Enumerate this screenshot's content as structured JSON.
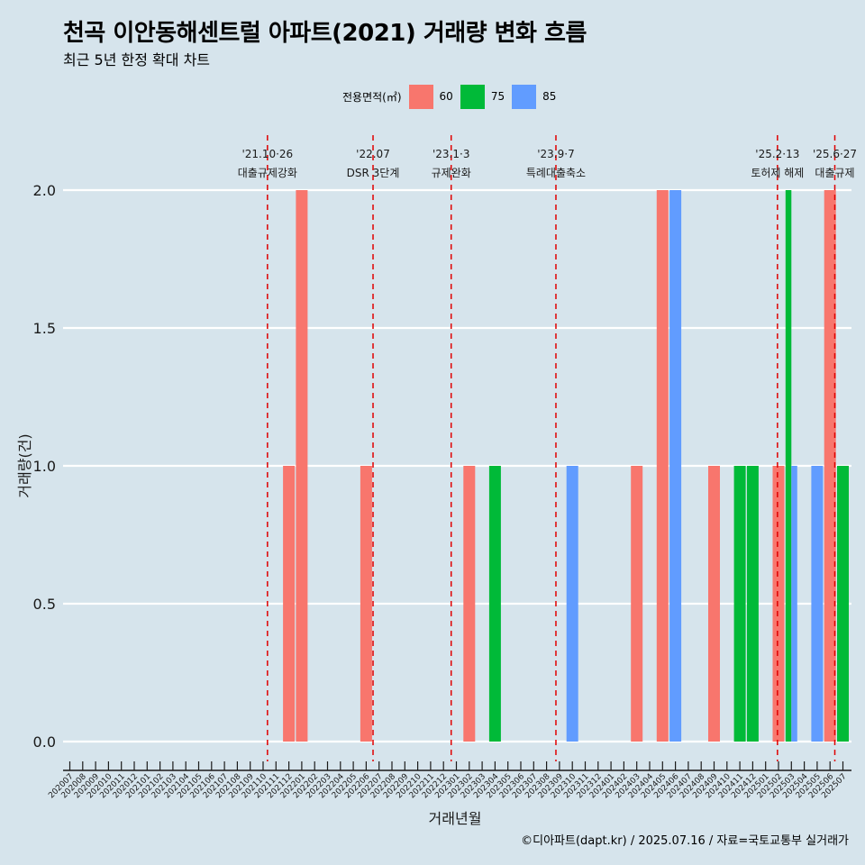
{
  "title": "천곡 이안동해센트럴 아파트(2021) 거래량 변화 흐름",
  "subtitle": "최근 5년 한정 확대 차트",
  "caption": "©디아파트(dapt.kr) / 2025.07.16 / 자료=국토교통부 실거래가",
  "legend": {
    "title": "전용면적(㎡)",
    "items": [
      {
        "label": "60",
        "color": "#f8766d"
      },
      {
        "label": "75",
        "color": "#00ba38"
      },
      {
        "label": "85",
        "color": "#619cff"
      }
    ]
  },
  "chart_data": {
    "type": "bar",
    "xlabel": "거래년월",
    "ylabel": "거래량(건)",
    "ylim": [
      0,
      2
    ],
    "yticks": [
      "0.0",
      "0.5",
      "1.0",
      "1.5",
      "2.0"
    ],
    "categories": [
      "202007",
      "202008",
      "202009",
      "202010",
      "202011",
      "202012",
      "202101",
      "202102",
      "202103",
      "202104",
      "202105",
      "202106",
      "202107",
      "202108",
      "202109",
      "202110",
      "202111",
      "202112",
      "202201",
      "202202",
      "202203",
      "202204",
      "202205",
      "202206",
      "202207",
      "202208",
      "202209",
      "202210",
      "202211",
      "202212",
      "202301",
      "202302",
      "202303",
      "202304",
      "202305",
      "202306",
      "202307",
      "202308",
      "202309",
      "202310",
      "202311",
      "202312",
      "202401",
      "202402",
      "202403",
      "202404",
      "202405",
      "202406",
      "202407",
      "202408",
      "202409",
      "202410",
      "202411",
      "202412",
      "202501",
      "202502",
      "202503",
      "202504",
      "202505",
      "202506",
      "202507"
    ],
    "series": [
      {
        "name": "60",
        "color": "#f8766d",
        "points": [
          [
            "202112",
            1
          ],
          [
            "202201",
            2
          ],
          [
            "202206",
            1
          ],
          [
            "202302",
            1
          ],
          [
            "202403",
            1
          ],
          [
            "202405",
            2
          ],
          [
            "202409",
            1
          ],
          [
            "202502",
            1
          ],
          [
            "202506",
            2
          ]
        ]
      },
      {
        "name": "75",
        "color": "#00ba38",
        "points": [
          [
            "202304",
            1
          ],
          [
            "202411",
            1
          ],
          [
            "202412",
            1
          ],
          [
            "202503",
            2
          ],
          [
            "202507",
            1
          ]
        ]
      },
      {
        "name": "85",
        "color": "#619cff",
        "points": [
          [
            "202310",
            1
          ],
          [
            "202406",
            2
          ],
          [
            "202503",
            1
          ],
          [
            "202505",
            1
          ]
        ]
      }
    ],
    "annotations": [
      {
        "date": "'21.10·26",
        "text": "대출규제강화",
        "month": "202110",
        "day": 26
      },
      {
        "date": "'22.07",
        "text": "DSR 3단계",
        "month": "202207",
        "day": 1
      },
      {
        "date": "'23.1·3",
        "text": "규제완화",
        "month": "202301",
        "day": 3
      },
      {
        "date": "'23.9·7",
        "text": "특례대출축소",
        "month": "202309",
        "day": 7
      },
      {
        "date": "'25.2·13",
        "text": "토허제 해제",
        "month": "202502",
        "day": 13
      },
      {
        "date": "'25.6·27",
        "text": "대출규제",
        "month": "202506",
        "day": 27
      }
    ],
    "grid": true,
    "legend_position": "top"
  }
}
